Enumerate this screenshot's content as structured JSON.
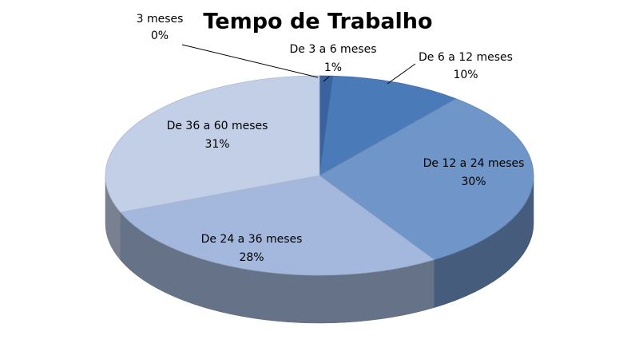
{
  "chart_data": {
    "type": "pie",
    "title": "Tempo de Trabalho",
    "categories": [
      "3 meses",
      "De 3 a 6 meses",
      "De 6 a 12 meses",
      "De 12 a 24 meses",
      "De 24 a 36 meses",
      "De 36 a 60 meses"
    ],
    "values": [
      0,
      1,
      10,
      30,
      28,
      31
    ],
    "value_labels": [
      "0%",
      "1%",
      "10%",
      "30%",
      "28%",
      "31%"
    ],
    "colors": [
      "#2a4d80",
      "#3b62a0",
      "#4a7ab8",
      "#7095c9",
      "#a3b8dc",
      "#c3cfe6"
    ]
  }
}
